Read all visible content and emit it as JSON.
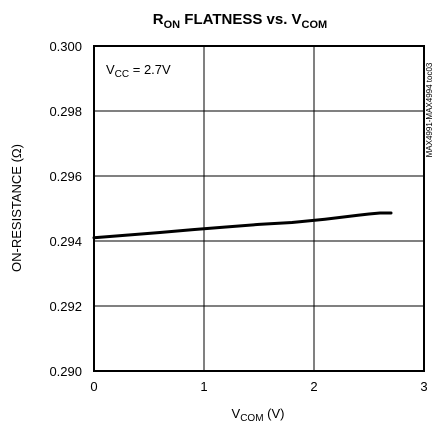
{
  "chart_data": {
    "type": "line",
    "title": {
      "main": "R",
      "main_sub": "ON",
      "mid": " FLATNESS vs. V",
      "end_sub": "COM"
    },
    "xlabel": {
      "main": "V",
      "sub": "COM",
      "rest": " (V)"
    },
    "ylabel": "ON-RESISTANCE (Ω)",
    "xlim": [
      0,
      3
    ],
    "ylim": [
      0.29,
      0.3
    ],
    "x_ticks": [
      0,
      1,
      2,
      3
    ],
    "x_tick_labels": [
      "0",
      "1",
      "2",
      "3"
    ],
    "y_ticks": [
      0.29,
      0.292,
      0.294,
      0.296,
      0.298,
      0.3
    ],
    "y_tick_labels": [
      "0.290",
      "0.292",
      "0.294",
      "0.296",
      "0.298",
      "0.300"
    ],
    "grid": true,
    "annotation": {
      "main": "V",
      "sub": "CC",
      "rest": " = 2.7V"
    },
    "side_label": "MAX4991-MAX4994 toc03",
    "line_color": "#000000",
    "series": [
      {
        "x": [
          0,
          0.3,
          0.6,
          0.9,
          1.2,
          1.5,
          1.8,
          2.1,
          2.4,
          2.5,
          2.6,
          2.7
        ],
        "y": [
          0.2941,
          0.29418,
          0.29426,
          0.29435,
          0.29443,
          0.29451,
          0.29457,
          0.29467,
          0.29479,
          0.29483,
          0.29486,
          0.29486
        ]
      }
    ]
  }
}
